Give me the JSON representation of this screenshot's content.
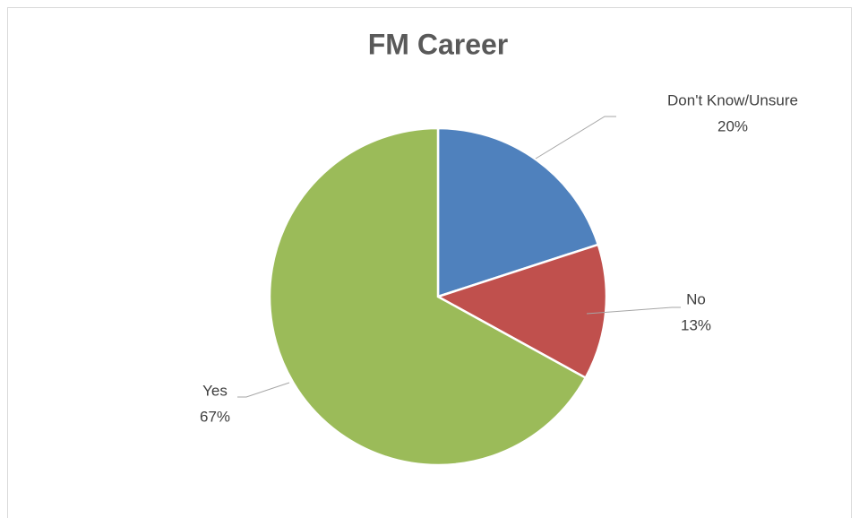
{
  "chart_data": {
    "type": "pie",
    "title": "FM Career",
    "categories": [
      "Don't Know/Unsure",
      "No",
      "Yes"
    ],
    "values": [
      20,
      13,
      67
    ],
    "value_labels": [
      "20%",
      "13%",
      "67%"
    ],
    "colors": [
      "#4f81bd",
      "#c0504d",
      "#9bbb59"
    ]
  }
}
